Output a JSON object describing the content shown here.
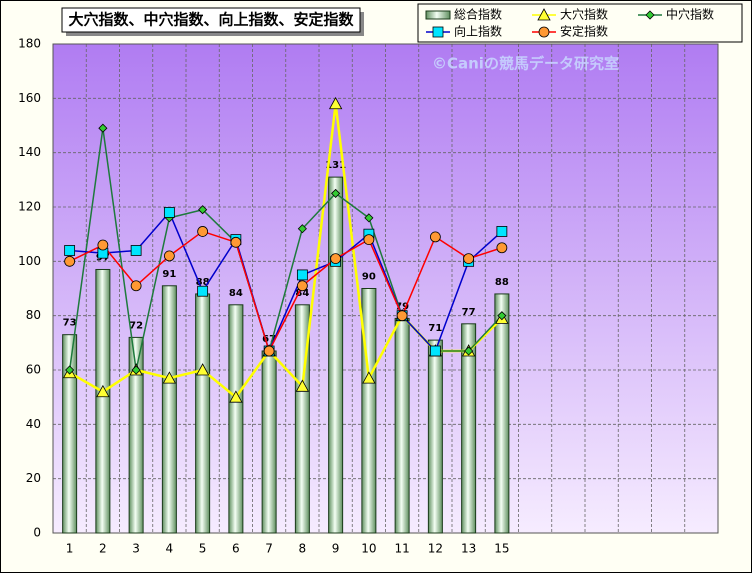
{
  "chart_data": {
    "type": "bar",
    "title": "大穴指数、中穴指数、向上指数、安定指数",
    "annotation": "©Caniの競馬データ研究室",
    "categories": [
      "1",
      "2",
      "3",
      "4",
      "5",
      "6",
      "7",
      "8",
      "9",
      "10",
      "11",
      "12",
      "13",
      "15",
      null,
      null,
      null,
      null,
      null,
      null
    ],
    "series": [
      {
        "name": "総合指数",
        "type": "bar",
        "color": "#9fd29f",
        "values": [
          73,
          97,
          72,
          91,
          88,
          84,
          67,
          84,
          131,
          90,
          79,
          71,
          77,
          88,
          null,
          null,
          null,
          null,
          null,
          null
        ]
      },
      {
        "name": "大穴指数",
        "type": "line",
        "marker": "triangle",
        "color": "#ffff00",
        "marker_color": "#ffff33",
        "values": [
          59,
          52,
          60,
          57,
          60,
          50,
          67,
          54,
          158,
          57,
          80,
          67,
          67,
          79,
          null,
          null,
          null,
          null,
          null,
          null
        ]
      },
      {
        "name": "中穴指数",
        "type": "line",
        "marker": "diamond",
        "color": "#1e7a3c",
        "marker_color": "#33cc33",
        "values": [
          60,
          149,
          60,
          116,
          119,
          107,
          67,
          112,
          125,
          116,
          80,
          67,
          67,
          80,
          null,
          null,
          null,
          null,
          null,
          null
        ]
      },
      {
        "name": "向上指数",
        "type": "line",
        "marker": "square",
        "color": "#0000cc",
        "marker_color": "#00e5ff",
        "values": [
          104,
          103,
          104,
          118,
          89,
          108,
          67,
          95,
          100,
          110,
          80,
          67,
          100,
          111,
          null,
          null,
          null,
          null,
          null,
          null
        ]
      },
      {
        "name": "安定指数",
        "type": "line",
        "marker": "circle",
        "color": "#ff0000",
        "marker_color": "#ff9933",
        "values": [
          100,
          106,
          91,
          102,
          111,
          107,
          67,
          91,
          101,
          108,
          80,
          109,
          101,
          105,
          null,
          null,
          null,
          null,
          null,
          null
        ]
      }
    ],
    "ylim": [
      0,
      180
    ],
    "yticks": [
      0,
      20,
      40,
      60,
      80,
      100,
      120,
      140,
      160,
      180
    ],
    "grid": true,
    "legend": "top-right"
  }
}
